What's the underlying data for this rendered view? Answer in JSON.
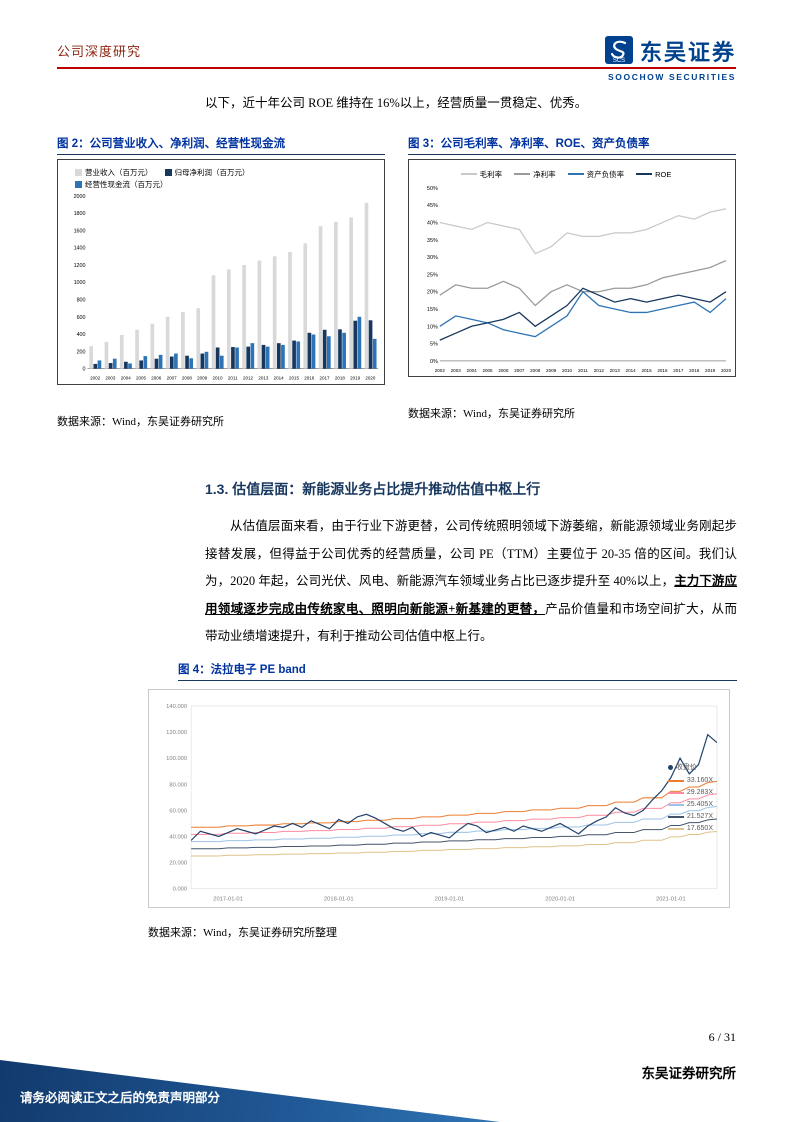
{
  "header": {
    "section_label": "公司深度研究",
    "brand_cn": "东吴证券",
    "brand_en": "SOOCHOW SECURITIES",
    "logo_text": "SCS"
  },
  "intro": "以下，近十年公司 ROE 维持在 16%以上，经营质量一贯稳定、优秀。",
  "figure2": {
    "title": "图 2：公司营业收入、净利润、经营性现金流",
    "source": "数据来源：Wind，东吴证券研究所"
  },
  "figure3": {
    "title": "图 3：公司毛利率、净利率、ROE、资产负债率",
    "source": "数据来源：Wind，东吴证券研究所"
  },
  "section": {
    "heading": "1.3. 估值层面：新能源业务占比提升推动估值中枢上行"
  },
  "paragraph": {
    "p1": "从估值层面来看，由于行业下游更替，公司传统照明领域下游萎缩，新能源领域业务刚起步接替发展，但得益于公司优秀的经营质量，公司 PE（TTM）主要位于 20-35 倍的区间。我们认为，2020 年起，公司光伏、风电、新能源汽车领域业务占比已逐步提升至 40%以上，",
    "em": "主力下游应用领域逐步完成由传统家电、照明向新能源+新基建的更替，",
    "p2": "产品价值量和市场空间扩大，从而带动业绩增速提升，有利于推动公司估值中枢上行。"
  },
  "figure4": {
    "title": "图 4：法拉电子 PE band",
    "source": "数据来源：Wind，东吴证券研究所整理"
  },
  "footer": {
    "page": "6 / 31",
    "org": "东吴证券研究所",
    "disclaimer": "请务必阅读正文之后的免责声明部分"
  },
  "chart_data": [
    {
      "id": "chart2",
      "type": "bar",
      "title": "公司营业收入、净利润、经营性现金流",
      "categories": [
        "2002",
        "2003",
        "2004",
        "2005",
        "2006",
        "2007",
        "2008",
        "2009",
        "2010",
        "2011",
        "2012",
        "2013",
        "2014",
        "2015",
        "2016",
        "2017",
        "2018",
        "2019",
        "2020"
      ],
      "ylim": [
        0,
        2000
      ],
      "ystep": 200,
      "series": [
        {
          "name": "营业收入（百万元）",
          "color": "#d9d9d9",
          "values": [
            260,
            310,
            390,
            450,
            520,
            600,
            655,
            700,
            1080,
            1150,
            1200,
            1250,
            1300,
            1350,
            1450,
            1650,
            1700,
            1750,
            1920
          ]
        },
        {
          "name": "归母净利润（百万元）",
          "color": "#17375e",
          "values": [
            55,
            65,
            80,
            95,
            115,
            140,
            150,
            175,
            245,
            250,
            255,
            275,
            295,
            325,
            415,
            450,
            455,
            555,
            560
          ]
        },
        {
          "name": "经营性现金流（百万元）",
          "color": "#2e74b5",
          "values": [
            95,
            115,
            60,
            145,
            160,
            175,
            120,
            195,
            150,
            245,
            295,
            255,
            275,
            315,
            395,
            375,
            415,
            600,
            345
          ]
        }
      ]
    },
    {
      "id": "chart3",
      "type": "line",
      "title": "公司毛利率、净利率、ROE、资产负债率",
      "categories": [
        "2002",
        "2003",
        "2004",
        "2005",
        "2006",
        "2007",
        "2008",
        "2009",
        "2010",
        "2011",
        "2012",
        "2013",
        "2014",
        "2015",
        "2016",
        "2017",
        "2018",
        "2019",
        "2020"
      ],
      "ylim": [
        0,
        50
      ],
      "ystep": 5,
      "yfmt": "percent",
      "series": [
        {
          "name": "毛利率",
          "color": "#c9c9c9",
          "values": [
            40,
            39,
            38,
            40,
            39,
            38,
            31,
            33,
            37,
            36,
            36,
            37,
            37,
            38,
            40,
            42,
            41,
            43,
            44
          ]
        },
        {
          "name": "净利率",
          "color": "#9a9a9a",
          "values": [
            19,
            22,
            21,
            21,
            23,
            21,
            16,
            20,
            22,
            20,
            20,
            21,
            21,
            22,
            24,
            25,
            26,
            27,
            29
          ]
        },
        {
          "name": "资产负债率",
          "color": "#2e74b5",
          "values": [
            10,
            13,
            12,
            11,
            9,
            8,
            7,
            10,
            13,
            20,
            16,
            15,
            14,
            14,
            15,
            16,
            17,
            14,
            18
          ]
        },
        {
          "name": "ROE",
          "color": "#17375e",
          "values": [
            6,
            8,
            10,
            11,
            12,
            14,
            10,
            13,
            16,
            21,
            19,
            17,
            18,
            17,
            18,
            19,
            18,
            17,
            20
          ]
        }
      ]
    },
    {
      "id": "chart4",
      "type": "pe_band",
      "title": "法拉电子 PE band",
      "ylim": [
        0,
        140
      ],
      "ystep": 20,
      "x_ticks": [
        {
          "label": "2017-01-01",
          "index": 4
        },
        {
          "label": "2018-01-01",
          "index": 16
        },
        {
          "label": "2019-01-01",
          "index": 28
        },
        {
          "label": "2020-01-01",
          "index": 40
        },
        {
          "label": "2021-01-01",
          "index": 52
        }
      ],
      "price": {
        "name": "收盘价",
        "color": "#24436c",
        "values": [
          37,
          44,
          42,
          40,
          43,
          46,
          44,
          42,
          45,
          48,
          47,
          50,
          47,
          52,
          49,
          46,
          53,
          50,
          55,
          57,
          54,
          50,
          46,
          44,
          47,
          40,
          43,
          41,
          39,
          45,
          50,
          48,
          43,
          45,
          47,
          44,
          48,
          46,
          44,
          47,
          50,
          46,
          42,
          48,
          52,
          55,
          62,
          58,
          56,
          60,
          68,
          75,
          85,
          100,
          88,
          95,
          118,
          112
        ]
      },
      "eps": [
        1.42,
        1.42,
        1.42,
        1.42,
        1.45,
        1.45,
        1.45,
        1.47,
        1.47,
        1.47,
        1.5,
        1.5,
        1.5,
        1.52,
        1.52,
        1.52,
        1.55,
        1.55,
        1.55,
        1.58,
        1.58,
        1.58,
        1.62,
        1.62,
        1.62,
        1.66,
        1.66,
        1.66,
        1.7,
        1.7,
        1.7,
        1.74,
        1.74,
        1.74,
        1.78,
        1.78,
        1.78,
        1.82,
        1.82,
        1.82,
        1.86,
        1.86,
        1.86,
        1.92,
        1.92,
        1.92,
        2.0,
        2.0,
        2.0,
        2.1,
        2.1,
        2.1,
        2.25,
        2.25,
        2.35,
        2.35,
        2.45,
        2.48
      ],
      "bands": [
        {
          "label": "33.160X",
          "multiple": 33.16,
          "color": "#ed7d31"
        },
        {
          "label": "29.283X",
          "multiple": 29.283,
          "color": "#ff8ba0"
        },
        {
          "label": "25.405X",
          "multiple": 25.405,
          "color": "#9dc3e6"
        },
        {
          "label": "21.527X",
          "multiple": 21.527,
          "color": "#44546a"
        },
        {
          "label": "17.650X",
          "multiple": 17.65,
          "color": "#e0c28c"
        }
      ]
    }
  ]
}
